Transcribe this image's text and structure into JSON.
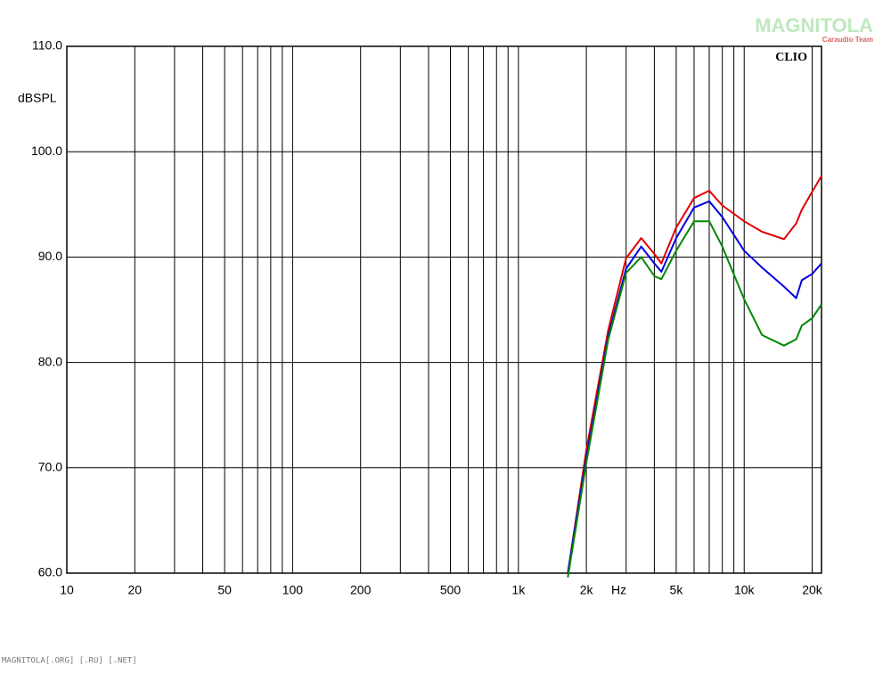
{
  "chart_data": {
    "type": "line",
    "brand": "CLIO",
    "ylabel": "dBSPL",
    "x_unit": "Hz",
    "watermark": "MAGNITOLA",
    "watermark_sub": "Caraudio Team",
    "footer": "MAGNITOLA[.ORG] [.RU] [.NET]",
    "xscale": "log",
    "grid": true,
    "xlim": [
      10,
      22000
    ],
    "ylim": [
      60,
      110
    ],
    "xticks": [
      10,
      20,
      50,
      100,
      200,
      500,
      {
        "value": 1000,
        "label": "1k"
      },
      {
        "value": 2000,
        "label": "2k"
      },
      {
        "value": 5000,
        "label": "5k"
      },
      {
        "value": 10000,
        "label": "10k"
      },
      {
        "value": 20000,
        "label": "20k"
      }
    ],
    "xminor": [
      30,
      40,
      60,
      70,
      80,
      90,
      300,
      400,
      600,
      700,
      800,
      900,
      3000,
      4000,
      6000,
      7000,
      8000,
      9000
    ],
    "yticks": [
      {
        "value": 60,
        "label": "60.0"
      },
      {
        "value": 70,
        "label": "70.0"
      },
      {
        "value": 80,
        "label": "80.0"
      },
      {
        "value": 90,
        "label": "90.0"
      },
      {
        "value": 100,
        "label": "100.0"
      },
      {
        "value": 110,
        "label": "110.0"
      }
    ],
    "x": [
      1656,
      2000,
      2500,
      3000,
      3500,
      4000,
      4300,
      5000,
      6000,
      7000,
      8000,
      10000,
      12000,
      15000,
      17000,
      18000,
      20000,
      22000
    ],
    "series": [
      {
        "color": "#e00000",
        "values": [
          60,
          71.7,
          83.1,
          89.9,
          91.8,
          90.3,
          89.4,
          92.8,
          95.6,
          96.3,
          94.9,
          93.4,
          92.4,
          91.7,
          93.2,
          94.5,
          96.2,
          97.7
        ]
      },
      {
        "color": "#0000e0",
        "values": [
          60,
          71.0,
          82.5,
          88.9,
          91.0,
          89.4,
          88.6,
          91.8,
          94.7,
          95.3,
          93.8,
          90.6,
          89.0,
          87.2,
          86.1,
          87.8,
          88.4,
          89.4
        ]
      },
      {
        "color": "#008800",
        "values": [
          59.6,
          70.5,
          82.2,
          88.5,
          90.0,
          88.2,
          87.9,
          90.6,
          93.4,
          93.4,
          91.0,
          86.0,
          82.6,
          81.6,
          82.2,
          83.5,
          84.2,
          85.5
        ]
      }
    ]
  }
}
